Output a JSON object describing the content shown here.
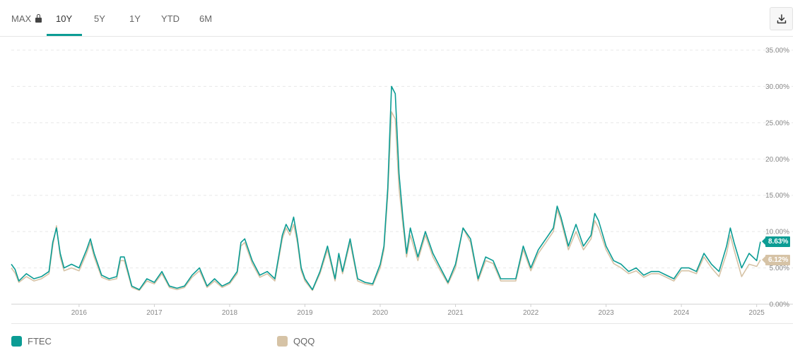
{
  "tabs": [
    {
      "label": "MAX",
      "locked": true,
      "icon": "lock-icon"
    },
    {
      "label": "10Y",
      "active": true
    },
    {
      "label": "5Y"
    },
    {
      "label": "1Y"
    },
    {
      "label": "YTD"
    },
    {
      "label": "6M"
    }
  ],
  "toolbar": {
    "download_icon": "download-icon"
  },
  "colors": {
    "FTEC": "#0b9c94",
    "QQQ": "#d6c3a6",
    "active_tab": "#0b9c94"
  },
  "chart_data": {
    "type": "line",
    "y_format": "percent",
    "ylim": [
      0,
      35
    ],
    "yticks": [
      "35.00%",
      "30.00%",
      "25.00%",
      "20.00%",
      "15.00%",
      "10.00%",
      "5.00%",
      "0.00%"
    ],
    "xlim": [
      2015.1,
      2025.05
    ],
    "xticks": [
      "2016",
      "2017",
      "2018",
      "2019",
      "2020",
      "2021",
      "2022",
      "2023",
      "2024",
      "2025"
    ],
    "grid": "horizontal-dashed",
    "legend": "bottom",
    "series": [
      {
        "name": "FTEC",
        "end_label": "8.63%",
        "x": [
          2015.1,
          2015.15,
          2015.2,
          2015.3,
          2015.4,
          2015.5,
          2015.6,
          2015.65,
          2015.7,
          2015.75,
          2015.8,
          2015.9,
          2016.0,
          2016.1,
          2016.15,
          2016.2,
          2016.3,
          2016.4,
          2016.5,
          2016.55,
          2016.6,
          2016.7,
          2016.8,
          2016.9,
          2017.0,
          2017.1,
          2017.2,
          2017.3,
          2017.4,
          2017.5,
          2017.6,
          2017.7,
          2017.8,
          2017.9,
          2018.0,
          2018.1,
          2018.15,
          2018.2,
          2018.3,
          2018.4,
          2018.5,
          2018.6,
          2018.7,
          2018.75,
          2018.8,
          2018.85,
          2018.9,
          2018.95,
          2019.0,
          2019.1,
          2019.2,
          2019.3,
          2019.4,
          2019.45,
          2019.5,
          2019.6,
          2019.7,
          2019.8,
          2019.9,
          2020.0,
          2020.05,
          2020.1,
          2020.15,
          2020.2,
          2020.25,
          2020.3,
          2020.35,
          2020.4,
          2020.5,
          2020.6,
          2020.7,
          2020.8,
          2020.9,
          2021.0,
          2021.1,
          2021.2,
          2021.3,
          2021.4,
          2021.5,
          2021.6,
          2021.7,
          2021.8,
          2021.9,
          2022.0,
          2022.1,
          2022.2,
          2022.3,
          2022.35,
          2022.4,
          2022.5,
          2022.6,
          2022.7,
          2022.8,
          2022.85,
          2022.9,
          2023.0,
          2023.1,
          2023.2,
          2023.3,
          2023.4,
          2023.5,
          2023.6,
          2023.7,
          2023.8,
          2023.9,
          2024.0,
          2024.1,
          2024.2,
          2024.3,
          2024.4,
          2024.5,
          2024.6,
          2024.65,
          2024.7,
          2024.8,
          2024.9,
          2025.0,
          2025.05
        ],
        "y": [
          5.5,
          4.8,
          3.2,
          4.2,
          3.5,
          3.8,
          4.5,
          8.5,
          10.5,
          7.0,
          5.0,
          5.5,
          5.0,
          7.5,
          9.0,
          7.0,
          4.0,
          3.5,
          3.8,
          6.5,
          6.5,
          2.5,
          2.0,
          3.5,
          3.0,
          4.5,
          2.5,
          2.2,
          2.5,
          4.0,
          5.0,
          2.5,
          3.5,
          2.5,
          3.0,
          4.5,
          8.5,
          9.0,
          6.0,
          4.0,
          4.5,
          3.5,
          9.5,
          11.0,
          10.0,
          12.0,
          9.0,
          5.0,
          3.5,
          2.0,
          4.5,
          8.0,
          3.5,
          7.0,
          4.5,
          9.0,
          3.5,
          3.0,
          2.8,
          5.5,
          8.0,
          16.0,
          30.0,
          29.0,
          18.0,
          12.0,
          7.0,
          10.5,
          6.5,
          10.0,
          7.0,
          5.0,
          3.0,
          5.5,
          10.5,
          9.0,
          3.5,
          6.5,
          6.0,
          3.5,
          3.5,
          3.5,
          8.0,
          5.0,
          7.5,
          9.0,
          10.5,
          13.5,
          12.0,
          8.0,
          11.0,
          8.0,
          9.5,
          12.5,
          11.5,
          8.0,
          6.0,
          5.5,
          4.5,
          5.0,
          4.0,
          4.5,
          4.5,
          4.0,
          3.5,
          5.0,
          5.0,
          4.5,
          7.0,
          5.5,
          4.5,
          8.0,
          10.5,
          8.5,
          5.0,
          7.0,
          6.0,
          8.6
        ]
      },
      {
        "name": "QQQ",
        "end_label": "6.12%",
        "x": [
          2015.1,
          2015.15,
          2015.2,
          2015.3,
          2015.4,
          2015.5,
          2015.6,
          2015.65,
          2015.7,
          2015.75,
          2015.8,
          2015.9,
          2016.0,
          2016.1,
          2016.15,
          2016.2,
          2016.3,
          2016.4,
          2016.5,
          2016.55,
          2016.6,
          2016.7,
          2016.8,
          2016.9,
          2017.0,
          2017.1,
          2017.2,
          2017.3,
          2017.4,
          2017.5,
          2017.6,
          2017.7,
          2017.8,
          2017.9,
          2018.0,
          2018.1,
          2018.15,
          2018.2,
          2018.3,
          2018.4,
          2018.5,
          2018.6,
          2018.7,
          2018.75,
          2018.8,
          2018.85,
          2018.9,
          2018.95,
          2019.0,
          2019.1,
          2019.2,
          2019.3,
          2019.4,
          2019.45,
          2019.5,
          2019.6,
          2019.7,
          2019.8,
          2019.9,
          2020.0,
          2020.05,
          2020.1,
          2020.15,
          2020.2,
          2020.25,
          2020.3,
          2020.35,
          2020.4,
          2020.5,
          2020.6,
          2020.7,
          2020.8,
          2020.9,
          2021.0,
          2021.1,
          2021.2,
          2021.3,
          2021.4,
          2021.5,
          2021.6,
          2021.7,
          2021.8,
          2021.9,
          2022.0,
          2022.1,
          2022.2,
          2022.3,
          2022.35,
          2022.4,
          2022.5,
          2022.6,
          2022.7,
          2022.8,
          2022.85,
          2022.9,
          2023.0,
          2023.1,
          2023.2,
          2023.3,
          2023.4,
          2023.5,
          2023.6,
          2023.7,
          2023.8,
          2023.9,
          2024.0,
          2024.1,
          2024.2,
          2024.3,
          2024.4,
          2024.5,
          2024.6,
          2024.65,
          2024.7,
          2024.8,
          2024.9,
          2025.0,
          2025.05
        ],
        "y": [
          5.0,
          4.3,
          3.0,
          3.8,
          3.2,
          3.5,
          4.2,
          8.0,
          10.8,
          6.5,
          4.6,
          5.0,
          4.6,
          7.0,
          8.5,
          6.5,
          3.7,
          3.3,
          3.5,
          6.0,
          6.0,
          2.3,
          1.9,
          3.2,
          2.8,
          4.2,
          2.3,
          2.0,
          2.3,
          3.7,
          4.6,
          2.3,
          3.2,
          2.3,
          2.8,
          4.2,
          8.0,
          8.5,
          5.6,
          3.7,
          4.2,
          3.2,
          9.0,
          10.5,
          9.5,
          11.0,
          8.5,
          4.6,
          3.2,
          1.9,
          4.2,
          7.5,
          3.2,
          6.5,
          4.2,
          8.5,
          3.2,
          2.8,
          2.6,
          5.0,
          7.5,
          15.0,
          26.5,
          25.5,
          16.0,
          11.0,
          6.5,
          9.5,
          6.0,
          9.5,
          6.5,
          4.6,
          2.8,
          5.0,
          10.5,
          8.5,
          3.2,
          6.0,
          5.6,
          3.2,
          3.2,
          3.2,
          7.5,
          4.6,
          7.0,
          8.5,
          10.0,
          13.0,
          11.5,
          7.5,
          10.0,
          7.5,
          9.0,
          11.5,
          10.5,
          7.5,
          5.6,
          5.0,
          4.2,
          4.6,
          3.7,
          4.2,
          4.2,
          3.7,
          3.2,
          4.6,
          4.6,
          4.2,
          6.5,
          5.0,
          3.8,
          7.0,
          9.5,
          7.5,
          3.8,
          5.5,
          5.2,
          6.1
        ]
      }
    ]
  },
  "legend": [
    {
      "name": "FTEC",
      "color": "#0b9c94"
    },
    {
      "name": "QQQ",
      "color": "#d6c3a6"
    }
  ]
}
